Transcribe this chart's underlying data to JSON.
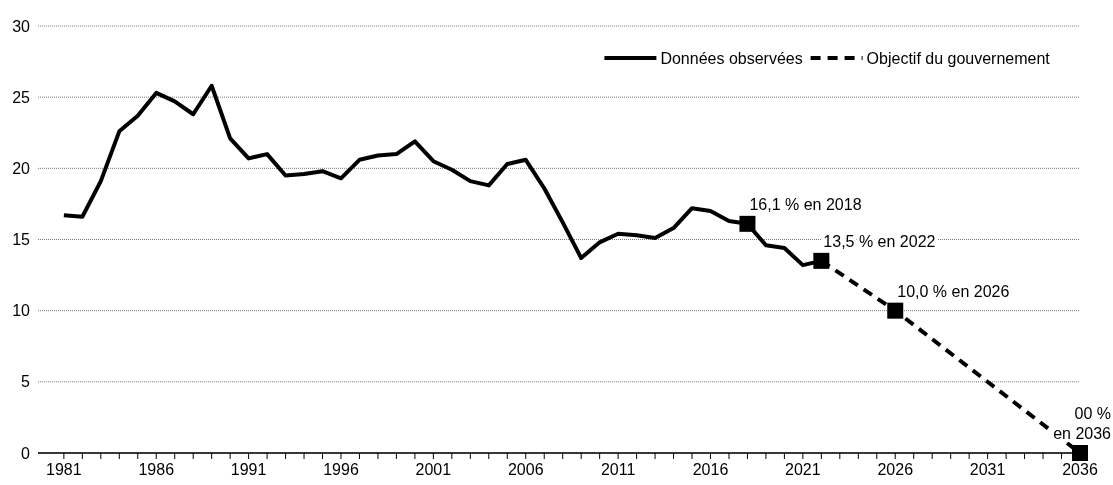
{
  "chart_data": {
    "type": "line",
    "x": [
      1981,
      1982,
      1983,
      1984,
      1985,
      1986,
      1987,
      1988,
      1989,
      1990,
      1991,
      1992,
      1993,
      1994,
      1995,
      1996,
      1997,
      1998,
      1999,
      2000,
      2001,
      2002,
      2003,
      2004,
      2005,
      2006,
      2007,
      2008,
      2009,
      2010,
      2011,
      2012,
      2013,
      2014,
      2015,
      2016,
      2017,
      2018,
      2019,
      2020,
      2021,
      2022
    ],
    "series": [
      {
        "name": "Données observées",
        "color": "#000000",
        "line_style": "solid",
        "values": [
          16.7,
          16.6,
          19.1,
          22.6,
          23.7,
          25.3,
          24.7,
          23.8,
          25.8,
          22.1,
          20.7,
          21.0,
          19.5,
          19.6,
          19.8,
          19.3,
          20.6,
          20.9,
          21.0,
          21.9,
          20.5,
          19.9,
          19.1,
          18.8,
          20.3,
          20.6,
          18.6,
          16.2,
          13.7,
          14.8,
          15.4,
          15.3,
          15.1,
          15.8,
          17.2,
          17.0,
          16.3,
          16.1,
          14.6,
          14.4,
          13.2,
          13.5
        ]
      },
      {
        "name": "Objectif du gouvernement",
        "color": "#000000",
        "line_style": "dashed",
        "x": [
          2022,
          2026,
          2036
        ],
        "values": [
          13.5,
          10.0,
          0
        ]
      },
      {
        "type": "scatter",
        "color": "#000000",
        "marker": "square",
        "x": [
          2018,
          2022,
          2026,
          2036
        ],
        "values": [
          16.1,
          13.5,
          10.0,
          0
        ]
      }
    ],
    "annotations": [
      {
        "text": "16,1 % en 2018",
        "x": 2018,
        "y": 16.1
      },
      {
        "text": "13,5 % en 2022",
        "x": 2022,
        "y": 13.5
      },
      {
        "text": "10,0 % en 2026",
        "x": 2026,
        "y": 10.0
      },
      {
        "text": "00 %\nen 2036",
        "x": 2036,
        "y": 0
      }
    ],
    "xlim": [
      1979.6,
      2036
    ],
    "xticks": [
      {
        "value": 1981,
        "label": "1981"
      },
      {
        "value": 1982,
        "label": null
      },
      {
        "value": 1983,
        "label": null
      },
      {
        "value": 1984,
        "label": null
      },
      {
        "value": 1985,
        "label": null
      },
      {
        "value": 1986,
        "label": "1986"
      },
      {
        "value": 1987,
        "label": null
      },
      {
        "value": 1988,
        "label": null
      },
      {
        "value": 1989,
        "label": null
      },
      {
        "value": 1990,
        "label": null
      },
      {
        "value": 1991,
        "label": "1991"
      },
      {
        "value": 1992,
        "label": null
      },
      {
        "value": 1993,
        "label": null
      },
      {
        "value": 1994,
        "label": null
      },
      {
        "value": 1995,
        "label": null
      },
      {
        "value": 1996,
        "label": "1996"
      },
      {
        "value": 1997,
        "label": null
      },
      {
        "value": 1998,
        "label": null
      },
      {
        "value": 1999,
        "label": null
      },
      {
        "value": 2000,
        "label": null
      },
      {
        "value": 2001,
        "label": "2001"
      },
      {
        "value": 2002,
        "label": null
      },
      {
        "value": 2003,
        "label": null
      },
      {
        "value": 2004,
        "label": null
      },
      {
        "value": 2005,
        "label": null
      },
      {
        "value": 2006,
        "label": "2006"
      },
      {
        "value": 2007,
        "label": null
      },
      {
        "value": 2008,
        "label": null
      },
      {
        "value": 2009,
        "label": null
      },
      {
        "value": 2010,
        "label": null
      },
      {
        "value": 2011,
        "label": "2011"
      },
      {
        "value": 2012,
        "label": null
      },
      {
        "value": 2013,
        "label": null
      },
      {
        "value": 2014,
        "label": null
      },
      {
        "value": 2015,
        "label": null
      },
      {
        "value": 2016,
        "label": "2016"
      },
      {
        "value": 2017,
        "label": null
      },
      {
        "value": 2018,
        "label": null
      },
      {
        "value": 2019,
        "label": null
      },
      {
        "value": 2020,
        "label": null
      },
      {
        "value": 2021,
        "label": "2021"
      },
      {
        "value": 2022,
        "label": null
      },
      {
        "value": 2023,
        "label": null
      },
      {
        "value": 2024,
        "label": null
      },
      {
        "value": 2025,
        "label": null
      },
      {
        "value": 2026,
        "label": "2026"
      },
      {
        "value": 2027,
        "label": null
      },
      {
        "value": 2028,
        "label": null
      },
      {
        "value": 2029,
        "label": null
      },
      {
        "value": 2030,
        "label": null
      },
      {
        "value": 2031,
        "label": "2031"
      },
      {
        "value": 2032,
        "label": null
      },
      {
        "value": 2033,
        "label": null
      },
      {
        "value": 2034,
        "label": null
      },
      {
        "value": 2035,
        "label": null
      },
      {
        "value": 2036,
        "label": "2036"
      }
    ],
    "ylim": [
      0,
      30
    ],
    "yticks": [
      0,
      5,
      10,
      15,
      20,
      25,
      30
    ],
    "grid": "y",
    "legend": "top right"
  }
}
